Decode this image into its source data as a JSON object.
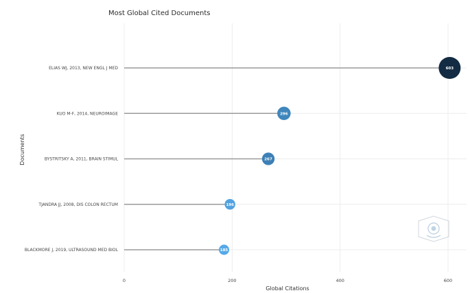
{
  "chart_data": {
    "type": "lollipop",
    "title": "Most Global Cited Documents",
    "xlabel": "Global Citations",
    "ylabel": "Documents",
    "xlim": [
      0,
      600
    ],
    "xticks": [
      0,
      200,
      400,
      600
    ],
    "grid": true,
    "categories": [
      "ELIAS WJ, 2013, NEW ENGL J MED",
      "KUO M-F, 2014, NEUROIMAGE",
      "BYSTRITSKY A, 2011, BRAIN STIMUL",
      "TJANDRA JJ, 2008, DIS COLON RECTUM",
      "BLACKMORE J, 2019, ULTRASOUND MED BIOL"
    ],
    "values": [
      603,
      296,
      267,
      196,
      185
    ],
    "colors": [
      "#132b43",
      "#3f86bc",
      "#3d80b6",
      "#52a2e0",
      "#56a9e8"
    ]
  },
  "watermark": {
    "icon": "bibliometrix-logo-icon"
  }
}
